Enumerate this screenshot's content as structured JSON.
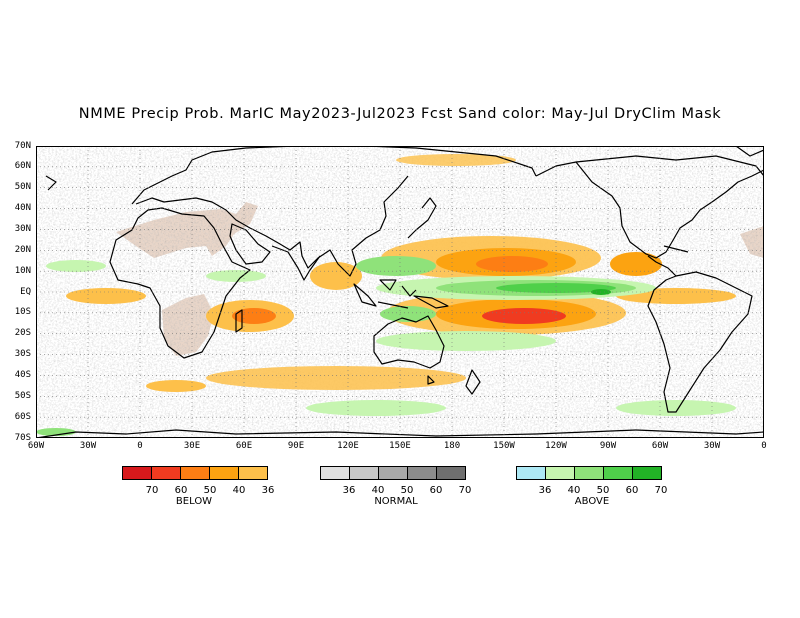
{
  "title": "NMME Precip Prob. MarIC  May2023-Jul2023 Fcst  Sand color: May-Jul DryClim Mask",
  "map": {
    "lat_labels": [
      "70N",
      "60N",
      "50N",
      "40N",
      "30N",
      "20N",
      "10N",
      "EQ",
      "10S",
      "20S",
      "30S",
      "40S",
      "50S",
      "60S",
      "70S"
    ],
    "lon_labels": [
      "60W",
      "30W",
      "0",
      "30E",
      "60E",
      "90E",
      "120E",
      "150E",
      "180",
      "150W",
      "120W",
      "90W",
      "60W",
      "30W",
      "0"
    ],
    "lon_range": [
      -60,
      360
    ],
    "lat_range": [
      -70,
      70
    ],
    "grid": "dotted"
  },
  "legend": {
    "below": {
      "caption": "BELOW",
      "ticks": [
        "70",
        "60",
        "50",
        "40",
        "36"
      ],
      "colors": [
        "#d7191c",
        "#f03b20",
        "#fd7e14",
        "#fca311",
        "#fdc04a"
      ]
    },
    "normal": {
      "caption": "NORMAL",
      "ticks": [
        "36",
        "40",
        "50",
        "60",
        "70"
      ],
      "colors": [
        "#e0e0e0",
        "#c8c8c8",
        "#a9a9a9",
        "#8c8c8c",
        "#6f6f6f"
      ]
    },
    "above": {
      "caption": "ABOVE",
      "ticks": [
        "36",
        "40",
        "50",
        "60",
        "70"
      ],
      "colors": [
        "#aee9f5",
        "#c6f5b0",
        "#8fe27a",
        "#4fd04a",
        "#22b226"
      ]
    }
  },
  "colors": {
    "sand": "#e8d5c8",
    "coast": "#000000"
  }
}
